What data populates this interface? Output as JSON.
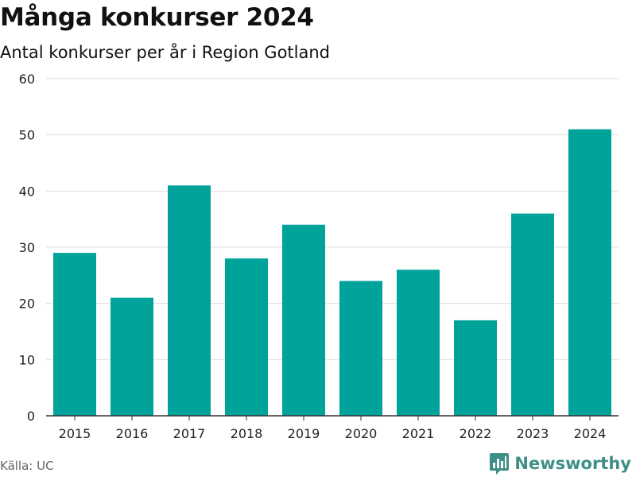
{
  "header": {
    "title": "Många konkurser 2024",
    "subtitle": "Antal konkurser per år i Region Gotland"
  },
  "footer": {
    "source": "Källa: UC",
    "brand": "Newsworthy"
  },
  "colors": {
    "bar": "#00a39a",
    "brand": "#3f8f88",
    "grid": "#dddddd",
    "axis": "#333333"
  },
  "icons": {
    "brand_logo": "newsworthy-logo-icon"
  },
  "chart_data": {
    "type": "bar",
    "title": "Många konkurser 2024",
    "subtitle": "Antal konkurser per år i Region Gotland",
    "xlabel": "",
    "ylabel": "",
    "categories": [
      "2015",
      "2016",
      "2017",
      "2018",
      "2019",
      "2020",
      "2021",
      "2022",
      "2023",
      "2024"
    ],
    "values": [
      29,
      21,
      41,
      28,
      34,
      24,
      26,
      17,
      36,
      51
    ],
    "ylim": [
      0,
      60
    ],
    "yticks": [
      0,
      10,
      20,
      30,
      40,
      50,
      60
    ],
    "grid": true,
    "legend": false
  }
}
